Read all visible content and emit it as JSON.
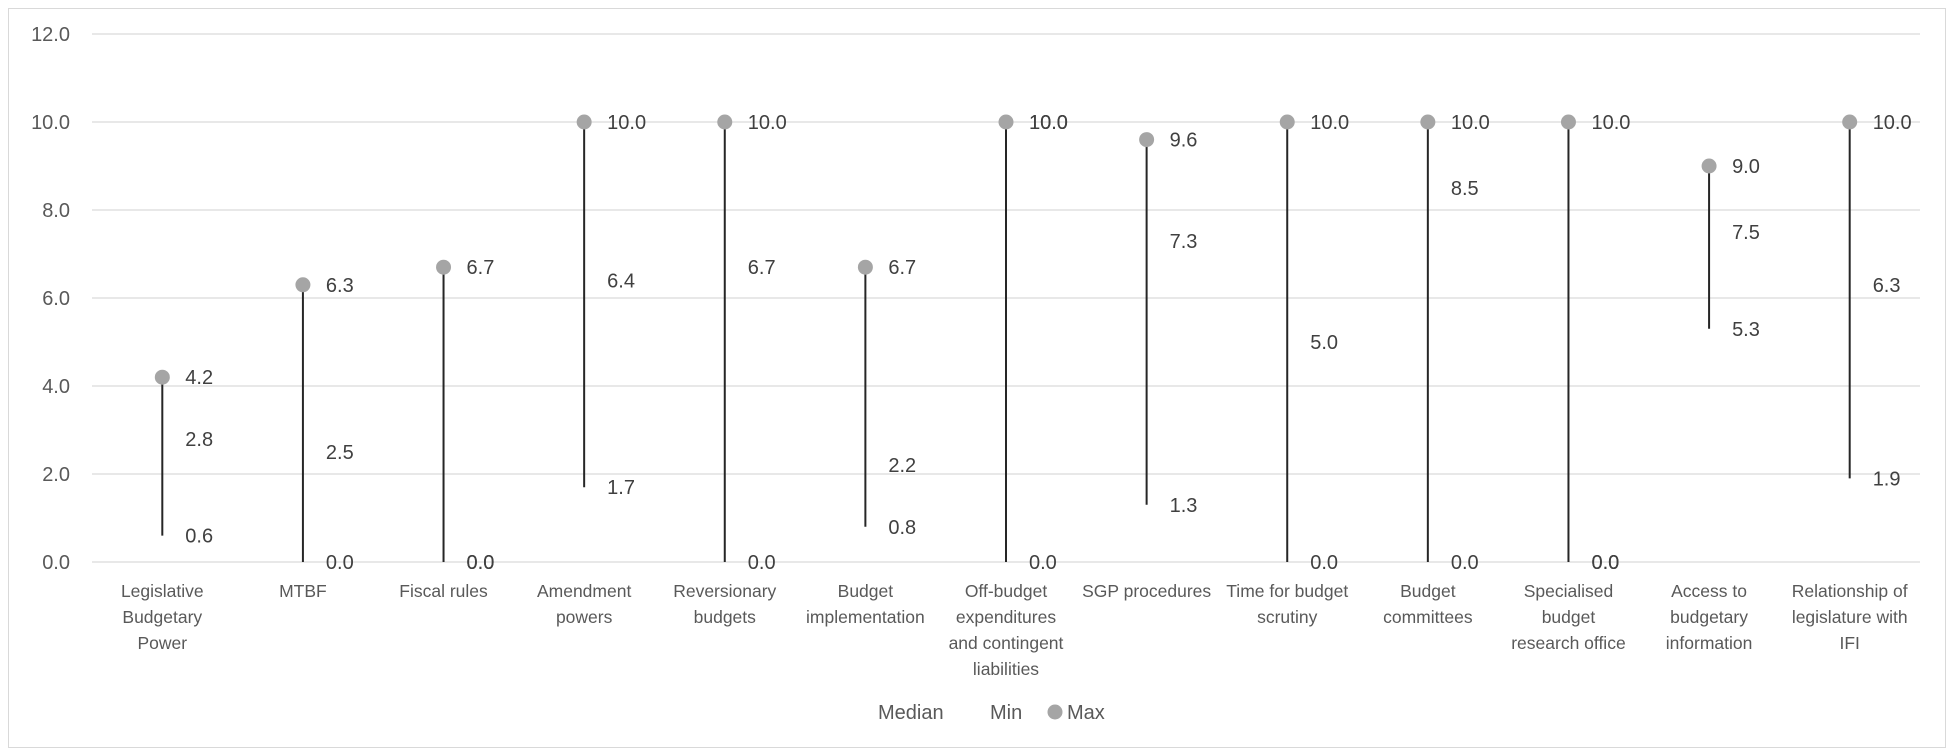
{
  "chart_data": {
    "type": "range",
    "title": "",
    "xlabel": "",
    "ylabel": "",
    "ylim": [
      0,
      12
    ],
    "yticks": [
      "0.0",
      "2.0",
      "4.0",
      "6.0",
      "8.0",
      "10.0",
      "12.0"
    ],
    "grid": true,
    "legend_position": "bottom",
    "categories": [
      "Legislative Budgetary Power",
      "MTBF",
      "Fiscal rules",
      "Amendment powers",
      "Reversionary budgets",
      "Budget implementation",
      "Off-budget expenditures and contingent liabilities",
      "SGP procedures",
      "Time for budget scrutiny",
      "Budget committees",
      "Specialised budget research office",
      "Access to budgetary information",
      "Relationship of legislature with IFI"
    ],
    "category_lines": [
      [
        "Legislative",
        "Budgetary",
        "Power"
      ],
      [
        "MTBF"
      ],
      [
        "Fiscal rules"
      ],
      [
        "Amendment",
        "powers"
      ],
      [
        "Reversionary",
        "budgets"
      ],
      [
        "Budget",
        "implementation"
      ],
      [
        "Off-budget",
        "expenditures",
        "and contingent",
        "liabilities"
      ],
      [
        "SGP procedures"
      ],
      [
        "Time for budget",
        "scrutiny"
      ],
      [
        "Budget",
        "committees"
      ],
      [
        "Specialised",
        "budget",
        "research office"
      ],
      [
        "Access to",
        "budgetary",
        "information"
      ],
      [
        "Relationship of",
        "legislature with",
        "IFI"
      ]
    ],
    "series": [
      {
        "name": "Median",
        "values": [
          2.8,
          2.5,
          0.0,
          6.4,
          6.7,
          2.2,
          10.0,
          7.3,
          5.0,
          8.5,
          0.0,
          7.5,
          6.3
        ],
        "labels": [
          "2.8",
          "2.5",
          "0.0",
          "6.4",
          "6.7",
          "2.2",
          "10.0",
          "7.3",
          "5.0",
          "8.5",
          "0.0",
          "7.5",
          "6.3"
        ]
      },
      {
        "name": "Min",
        "values": [
          0.6,
          0.0,
          0.0,
          1.7,
          0.0,
          0.8,
          0.0,
          1.3,
          0.0,
          0.0,
          0.0,
          5.3,
          1.9
        ],
        "labels": [
          "0.6",
          "0.0",
          "0.0",
          "1.7",
          "0.0",
          "0.8",
          "0.0",
          "1.3",
          "0.0",
          "0.0",
          "0.0",
          "5.3",
          "1.9"
        ]
      },
      {
        "name": "Max",
        "values": [
          4.2,
          6.3,
          6.7,
          10.0,
          10.0,
          6.7,
          10.0,
          9.6,
          10.0,
          10.0,
          10.0,
          9.0,
          10.0
        ],
        "labels": [
          "4.2",
          "6.3",
          "6.7",
          "10.0",
          "10.0",
          "6.7",
          "10.0",
          "9.6",
          "10.0",
          "10.0",
          "10.0",
          "9.0",
          "10.0"
        ]
      }
    ],
    "colors": {
      "max_marker": "#a5a5a5",
      "range_line": "#262626",
      "grid": "#d9d9d9",
      "text": "#595959"
    }
  }
}
